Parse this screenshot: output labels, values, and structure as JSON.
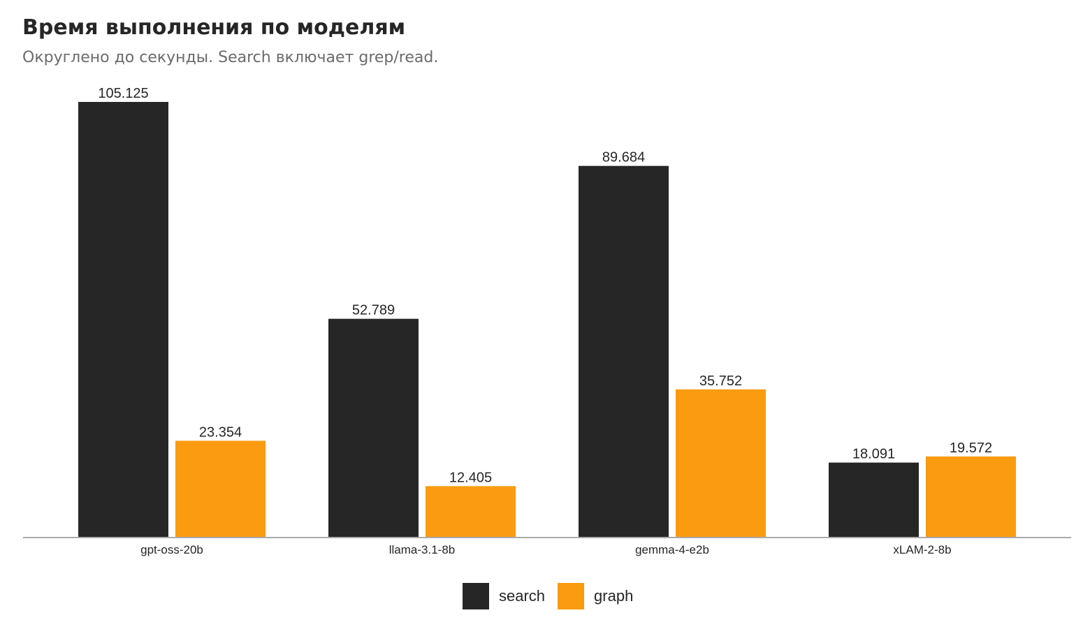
{
  "header": {
    "title": "Время выполнения по моделям",
    "subtitle": "Округлено до секунды. Search включает grep/read."
  },
  "colors": {
    "search": "#262626",
    "graph": "#fa9b10",
    "axis": "#aaaaaa",
    "text": "#262626"
  },
  "chart_data": {
    "type": "bar",
    "title": "Время выполнения по моделям",
    "subtitle": "Округлено до секунды. Search включает grep/read.",
    "categories": [
      "gpt-oss-20b",
      "llama-3.1-8b",
      "gemma-4-e2b",
      "xLAM-2-8b"
    ],
    "series": [
      {
        "name": "search",
        "color": "#262626",
        "values": [
          105.125,
          52.789,
          89.684,
          18.091
        ],
        "labels": [
          "105.125",
          "52.789",
          "89.684",
          "18.091"
        ]
      },
      {
        "name": "graph",
        "color": "#fa9b10",
        "values": [
          23.354,
          12.405,
          35.752,
          19.572
        ],
        "labels": [
          "23.354",
          "12.405",
          "35.752",
          "19.572"
        ]
      }
    ],
    "ylim": [
      0,
      105.125
    ],
    "grid": false,
    "legend_position": "bottom-center",
    "xlabel": "",
    "ylabel": ""
  },
  "legend": {
    "items": [
      {
        "label": "search",
        "color": "#262626"
      },
      {
        "label": "graph",
        "color": "#fa9b10"
      }
    ]
  }
}
